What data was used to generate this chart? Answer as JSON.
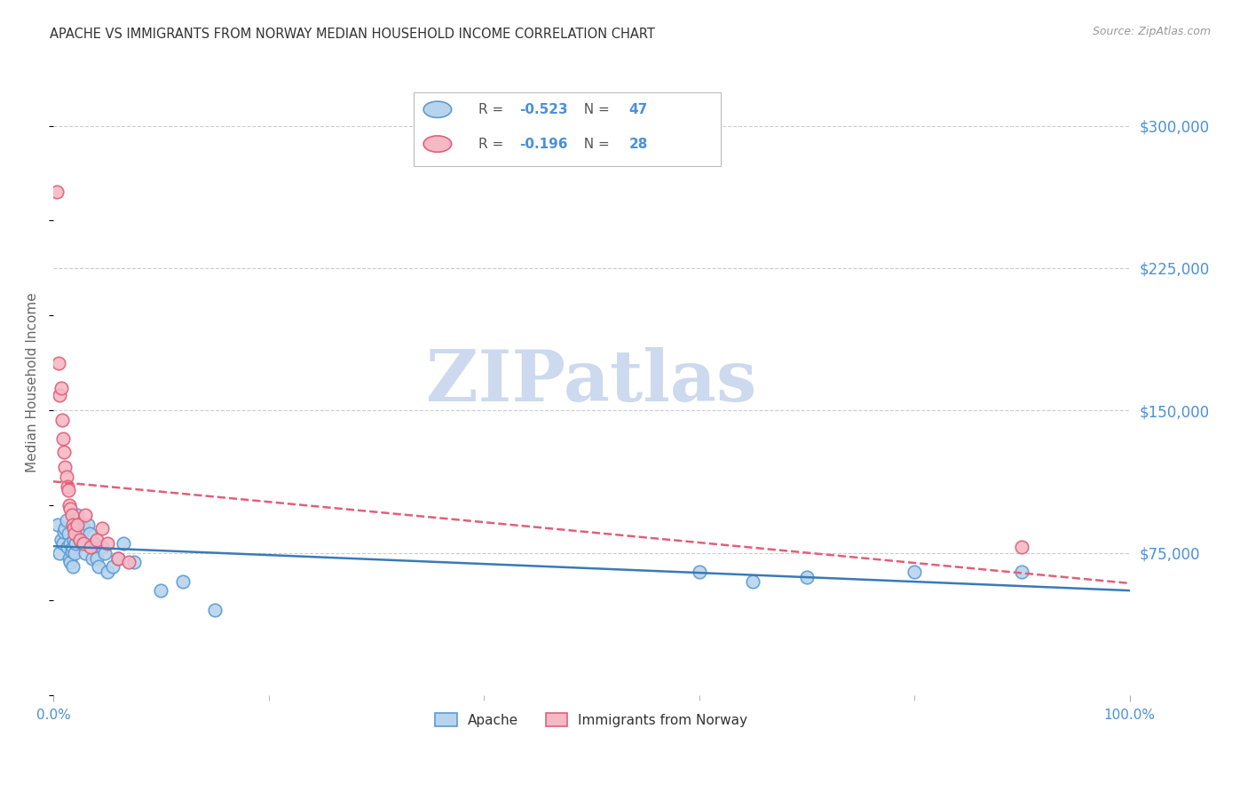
{
  "title": "APACHE VS IMMIGRANTS FROM NORWAY MEDIAN HOUSEHOLD INCOME CORRELATION CHART",
  "source": "Source: ZipAtlas.com",
  "ylabel": "Median Household Income",
  "xlim": [
    0,
    1.0
  ],
  "ylim": [
    0,
    330000
  ],
  "ytick_vals": [
    75000,
    150000,
    225000,
    300000
  ],
  "ytick_labels": [
    "$75,000",
    "$150,000",
    "$225,000",
    "$300,000"
  ],
  "background_color": "#ffffff",
  "grid_color": "#cccccc",
  "title_color": "#333333",
  "axis_label_color": "#4a90d9",
  "ylabel_color": "#666666",
  "source_color": "#999999",
  "watermark_text": "ZIPatlas",
  "watermark_color": "#ccd9ee",
  "series": [
    {
      "name": "Apache",
      "R": -0.523,
      "N": 47,
      "scatter_face": "#b8d4ed",
      "scatter_edge": "#5b9bd5",
      "line_color": "#3a7ab8",
      "line_style": "solid",
      "x": [
        0.004,
        0.006,
        0.007,
        0.009,
        0.01,
        0.011,
        0.012,
        0.013,
        0.014,
        0.015,
        0.016,
        0.016,
        0.017,
        0.018,
        0.018,
        0.019,
        0.02,
        0.021,
        0.022,
        0.023,
        0.024,
        0.025,
        0.026,
        0.027,
        0.028,
        0.03,
        0.032,
        0.034,
        0.036,
        0.038,
        0.04,
        0.042,
        0.045,
        0.048,
        0.05,
        0.055,
        0.06,
        0.065,
        0.075,
        0.1,
        0.12,
        0.15,
        0.6,
        0.65,
        0.7,
        0.8,
        0.9
      ],
      "y": [
        90000,
        75000,
        82000,
        80000,
        86000,
        88000,
        92000,
        78000,
        85000,
        72000,
        80000,
        70000,
        76000,
        78000,
        68000,
        82000,
        75000,
        80000,
        95000,
        88000,
        90000,
        82000,
        85000,
        80000,
        88000,
        75000,
        90000,
        85000,
        72000,
        80000,
        72000,
        68000,
        78000,
        75000,
        65000,
        68000,
        72000,
        80000,
        70000,
        55000,
        60000,
        45000,
        65000,
        60000,
        62000,
        65000,
        65000
      ]
    },
    {
      "name": "Immigrants from Norway",
      "R": -0.196,
      "N": 28,
      "scatter_face": "#f5b8c5",
      "scatter_edge": "#e0607a",
      "line_color": "#e0607a",
      "line_style": "dashed",
      "x": [
        0.003,
        0.005,
        0.006,
        0.007,
        0.008,
        0.009,
        0.01,
        0.011,
        0.012,
        0.013,
        0.014,
        0.015,
        0.016,
        0.017,
        0.018,
        0.019,
        0.02,
        0.022,
        0.025,
        0.028,
        0.03,
        0.035,
        0.04,
        0.045,
        0.05,
        0.06,
        0.07,
        0.9
      ],
      "y": [
        265000,
        175000,
        158000,
        162000,
        145000,
        135000,
        128000,
        120000,
        115000,
        110000,
        108000,
        100000,
        98000,
        95000,
        90000,
        88000,
        85000,
        90000,
        82000,
        80000,
        95000,
        78000,
        82000,
        88000,
        80000,
        72000,
        70000,
        78000
      ]
    }
  ],
  "legend_R_entries": [
    {
      "r_val": "-0.523",
      "n_val": "47",
      "face": "#b8d4ed",
      "edge": "#5b9bd5"
    },
    {
      "r_val": "-0.196",
      "n_val": "28",
      "face": "#f5b8c5",
      "edge": "#e0607a"
    }
  ],
  "bottom_legend": [
    {
      "label": "Apache",
      "face": "#b8d4ed",
      "edge": "#5b9bd5"
    },
    {
      "label": "Immigrants from Norway",
      "face": "#f5b8c5",
      "edge": "#e0607a"
    }
  ]
}
